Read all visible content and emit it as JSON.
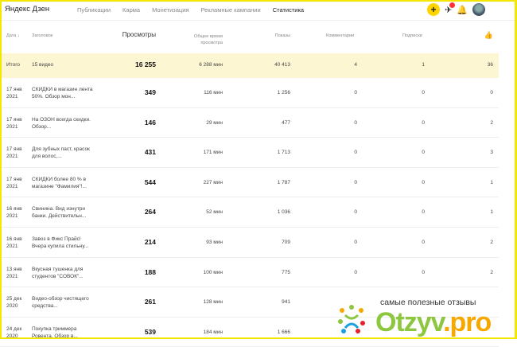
{
  "header": {
    "logo_text": "Яндекс Дзен",
    "nav": [
      "Публикации",
      "Карма",
      "Монетизация",
      "Рекламные кампании",
      "Статистика"
    ],
    "active_nav": "Статистика",
    "add_label": "+"
  },
  "table": {
    "columns": [
      "Дата ↓",
      "Заголовок",
      "Просмотры",
      "Общее время просмотра",
      "Показы",
      "Комментарии",
      "Подписки",
      "👍"
    ],
    "total": {
      "label": "Итого",
      "count": "15 видео",
      "views": "16 255",
      "time": "6 288 мин",
      "shows": "40 413",
      "comments": "4",
      "subs": "1",
      "likes": "36"
    },
    "rows": [
      {
        "date": "17 янв 2021",
        "title": "СКИДКИ в магазин лента 50%. Обзор мон...",
        "views": "349",
        "time": "116 мин",
        "shows": "1 256",
        "comments": "0",
        "subs": "0",
        "likes": "0"
      },
      {
        "date": "17 янв 2021",
        "title": "На ОЗОН всегда скидки. Обзор...",
        "views": "146",
        "time": "29 мин",
        "shows": "477",
        "comments": "0",
        "subs": "0",
        "likes": "2"
      },
      {
        "date": "17 янв 2021",
        "title": "Для зубных паст, красок для волос,...",
        "views": "431",
        "time": "171 мин",
        "shows": "1 713",
        "comments": "0",
        "subs": "0",
        "likes": "3"
      },
      {
        "date": "17 янв 2021",
        "title": "СКИДКИ более 80 % в магазине \"Фамилия\"!...",
        "views": "544",
        "time": "227 мин",
        "shows": "1 787",
        "comments": "0",
        "subs": "0",
        "likes": "1"
      },
      {
        "date": "16 янв 2021",
        "title": "Свинина. Вид изнутри банки. Действительн...",
        "views": "264",
        "time": "52 мин",
        "shows": "1 036",
        "comments": "0",
        "subs": "0",
        "likes": "1"
      },
      {
        "date": "16 янв 2021",
        "title": "Завоз в Фикс Прайс! Вчера купила стильну...",
        "views": "214",
        "time": "93 мин",
        "shows": "709",
        "comments": "0",
        "subs": "0",
        "likes": "2"
      },
      {
        "date": "13 янв 2021",
        "title": "Вкусная тушенка для студентов \"СОВОК\"...",
        "views": "188",
        "time": "100 мин",
        "shows": "775",
        "comments": "0",
        "subs": "0",
        "likes": "2"
      },
      {
        "date": "25 дек 2020",
        "title": "Видео-обзор чистящего средства...",
        "views": "261",
        "time": "128 мин",
        "shows": "941",
        "comments": "",
        "subs": "",
        "likes": ""
      },
      {
        "date": "24 дек 2020",
        "title": "Покупка триммера Ровента. Обзор в...",
        "views": "539",
        "time": "184 мин",
        "shows": "1 666",
        "comments": "",
        "subs": "",
        "likes": ""
      }
    ]
  },
  "watermark": {
    "tagline": "самые полезные отзывы",
    "brand": "Otzyv",
    "tld": ".pro"
  }
}
